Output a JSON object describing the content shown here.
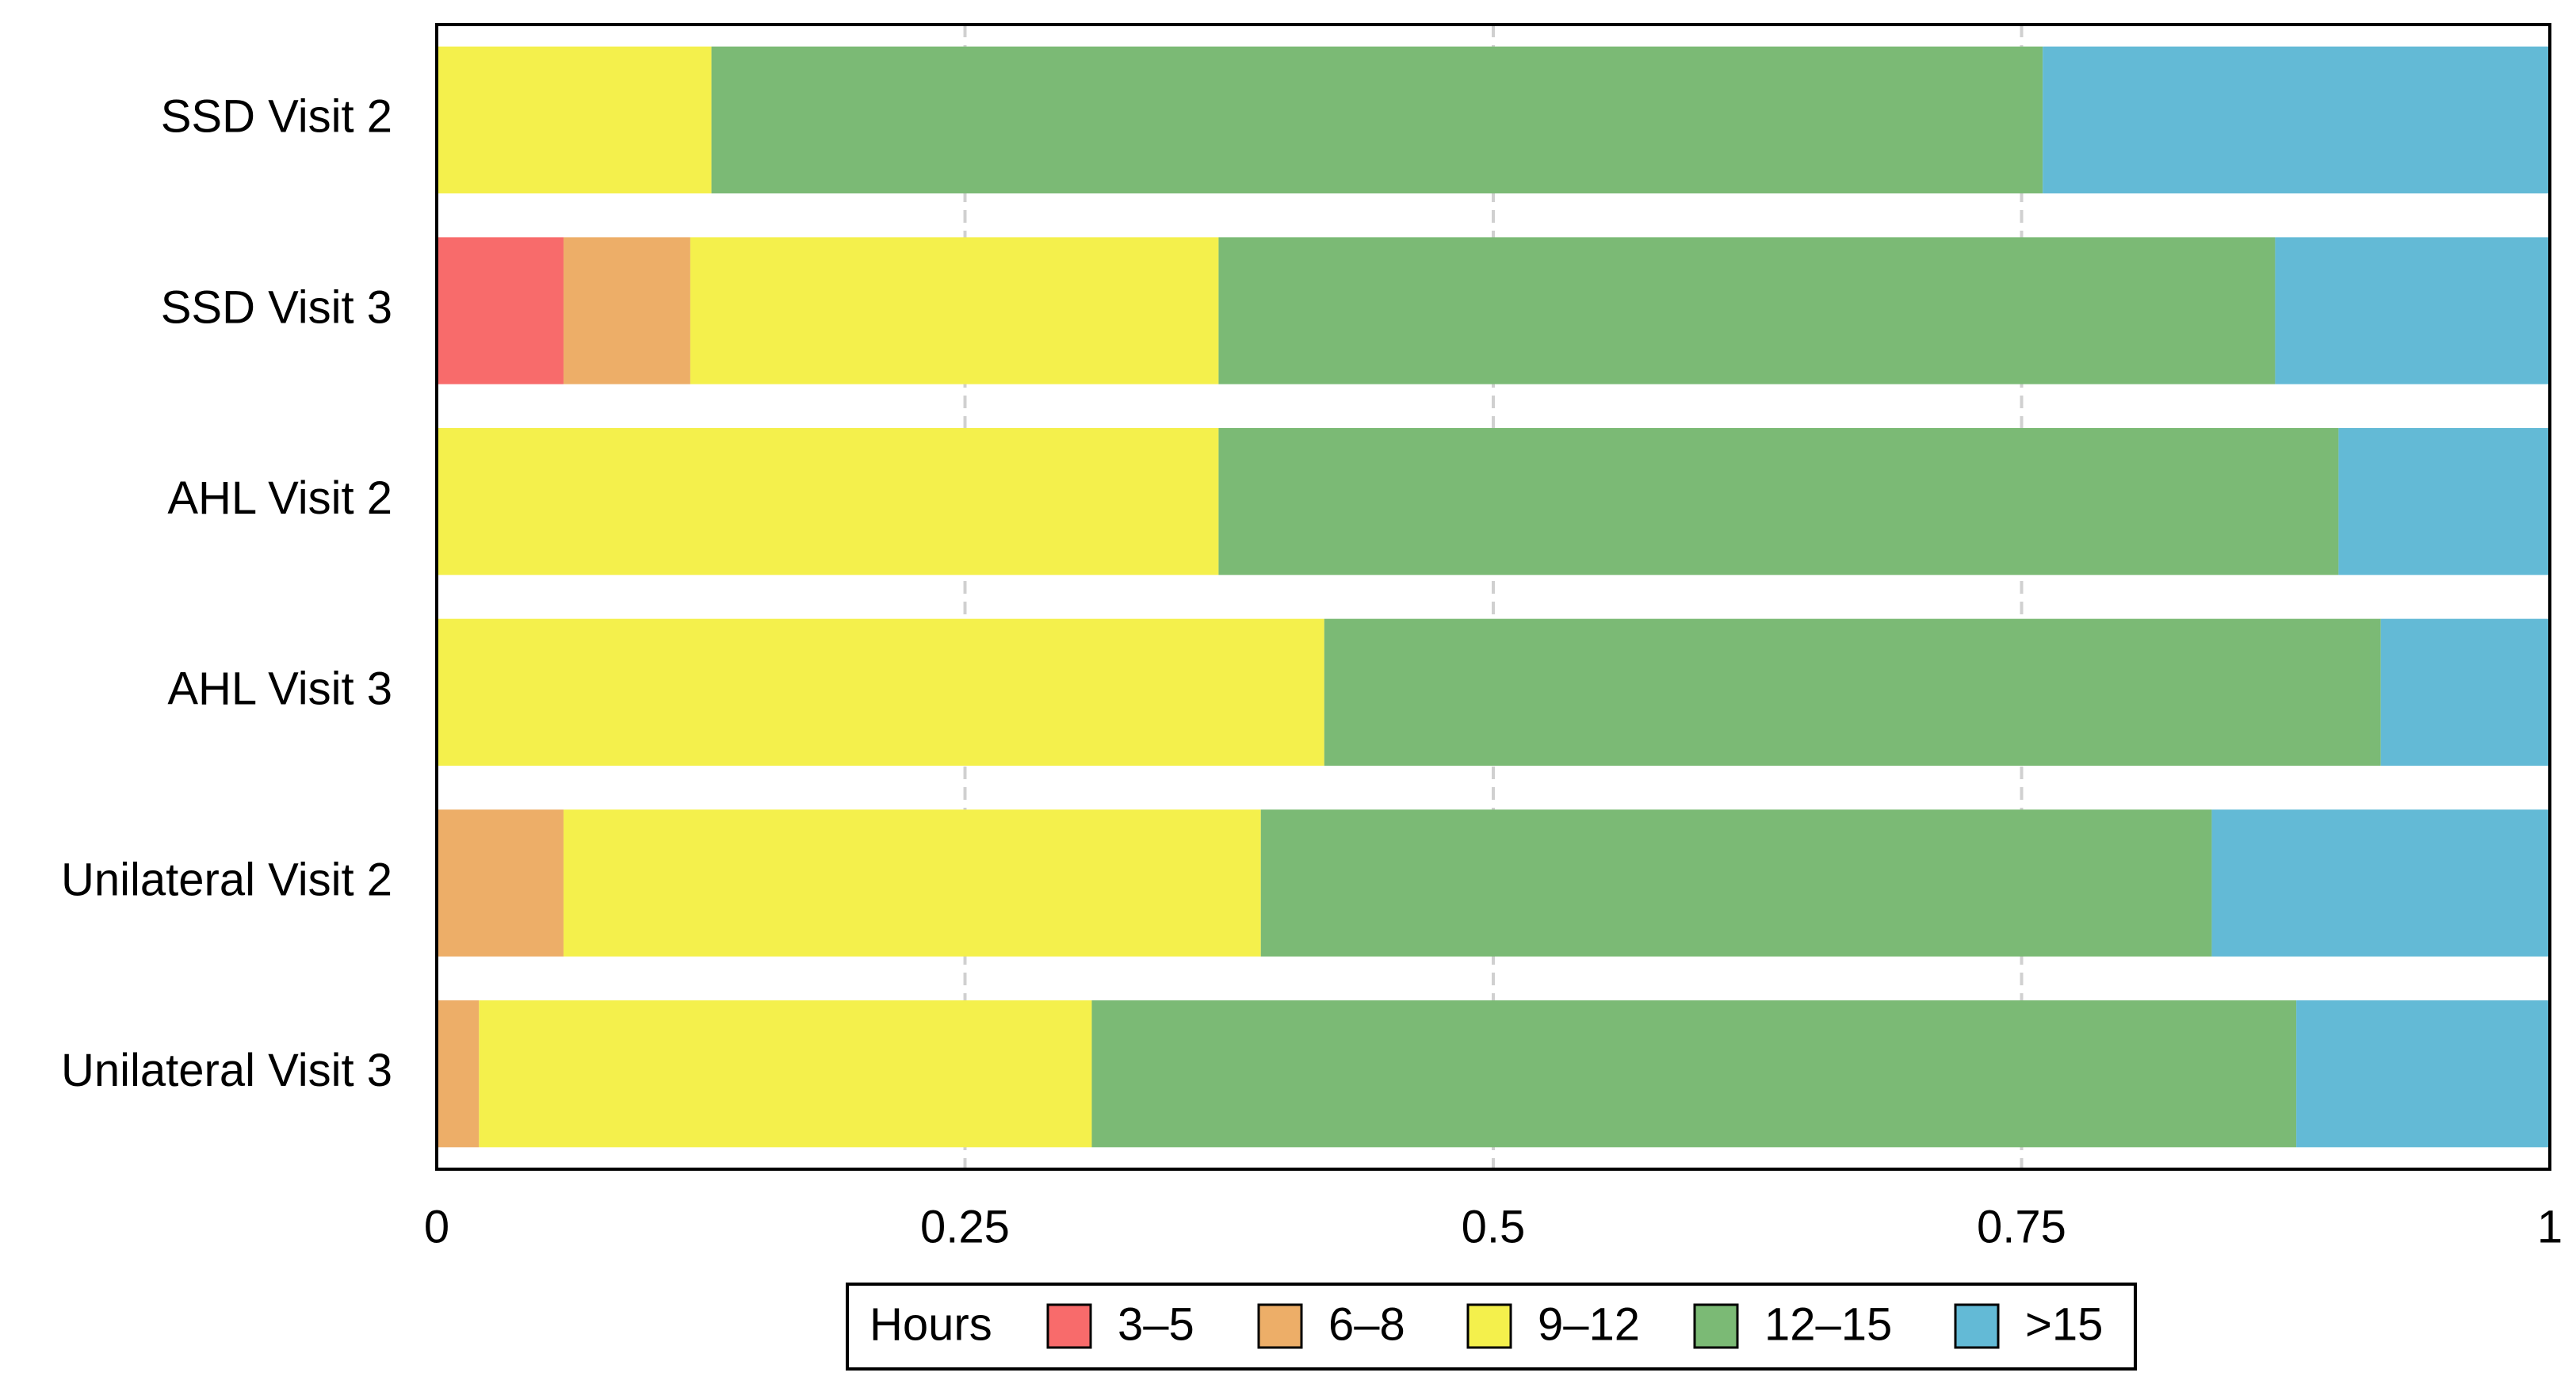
{
  "chart_data": {
    "type": "stacked-bar-horizontal",
    "categories": [
      "SSD Visit 2",
      "SSD Visit 3",
      "AHL Visit 2",
      "AHL Visit 3",
      "Unilateral Visit 2",
      "Unilateral Visit 3"
    ],
    "series": [
      {
        "name": "3–5",
        "color": "#f86b6b",
        "values": [
          0,
          0.06,
          0,
          0,
          0,
          0
        ]
      },
      {
        "name": "6–8",
        "color": "#edae68",
        "values": [
          0,
          0.06,
          0,
          0,
          0.06,
          0.02
        ]
      },
      {
        "name": "9–12",
        "color": "#f4f04c",
        "values": [
          0.13,
          0.25,
          0.37,
          0.42,
          0.33,
          0.29
        ]
      },
      {
        "name": "12–15",
        "color": "#7bba75",
        "values": [
          0.63,
          0.5,
          0.53,
          0.5,
          0.45,
          0.57
        ]
      },
      {
        "name": ">15",
        "color": "#63bad6",
        "values": [
          0.24,
          0.13,
          0.1,
          0.08,
          0.16,
          0.12
        ]
      }
    ],
    "xlim": [
      0,
      1
    ],
    "xticks": [
      0,
      0.25,
      0.5,
      0.75,
      1
    ],
    "grid": true,
    "legend_title": "Hours",
    "legend_position": "bottom"
  }
}
